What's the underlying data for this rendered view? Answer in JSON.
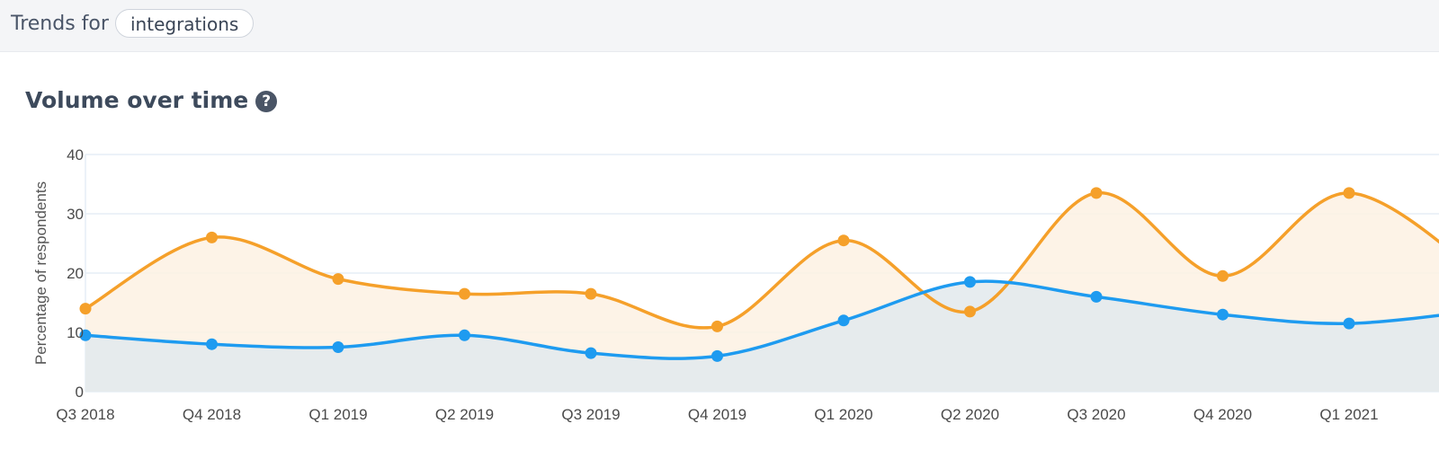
{
  "header": {
    "trends_for_label": "Trends for",
    "topic_pill": "integrations"
  },
  "section": {
    "title": "Volume over time",
    "help_icon": "question-circle-icon"
  },
  "colors": {
    "orange": "#f5a02a",
    "orange_fill": "#fdf1e3",
    "blue": "#1e9bf0",
    "blue_fill": "#e3eaed",
    "grid": "#e6eef6"
  },
  "chart_data": {
    "type": "area",
    "ylabel": "Percentage of respondents",
    "ylim": [
      0,
      40
    ],
    "yticks": [
      0,
      10,
      20,
      30,
      40
    ],
    "categories": [
      "Q3 2018",
      "Q4 2018",
      "Q1 2019",
      "Q2 2019",
      "Q3 2019",
      "Q4 2019",
      "Q1 2020",
      "Q2 2020",
      "Q3 2020",
      "Q4 2020",
      "Q1 2021"
    ],
    "grid": true,
    "legend": "none",
    "series": [
      {
        "color": "orange",
        "values": [
          14,
          26,
          19,
          16.5,
          16.5,
          11,
          25.5,
          13.5,
          33.5,
          19.5,
          33.5
        ]
      },
      {
        "color": "blue",
        "values": [
          9.5,
          8,
          7.5,
          9.5,
          6.5,
          6,
          12,
          18.5,
          16,
          13,
          11.5
        ]
      }
    ]
  }
}
